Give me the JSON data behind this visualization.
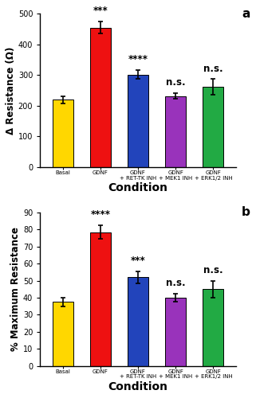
{
  "panel_a": {
    "categories": [
      "Basal",
      "GDNF",
      "GDNF + RET-TK INH",
      "GDNF + MEK1 INH",
      "GDNF + ERK1/2 INH"
    ],
    "values": [
      220,
      455,
      302,
      232,
      262
    ],
    "errors": [
      12,
      20,
      15,
      10,
      25
    ],
    "colors": [
      "#FFD700",
      "#EE1111",
      "#2244BB",
      "#9933BB",
      "#22AA44"
    ],
    "ylabel": "Δ Resistance (Ω)",
    "xlabel": "Condition",
    "ylim": [
      0,
      500
    ],
    "yticks": [
      0,
      100,
      200,
      300,
      400,
      500
    ],
    "significance": [
      "",
      "***",
      "****",
      "n.s.",
      "n.s."
    ],
    "panel_label": "a"
  },
  "panel_b": {
    "categories": [
      "Basal",
      "GDNF",
      "GDNF + RET-TK INH",
      "GDNF + MEK1 INH",
      "GDNF + ERK1/2 INH"
    ],
    "values": [
      37.5,
      78.5,
      52,
      40,
      45
    ],
    "errors": [
      2.5,
      4,
      3.5,
      2.5,
      5
    ],
    "colors": [
      "#FFD700",
      "#EE1111",
      "#2244BB",
      "#9933BB",
      "#22AA44"
    ],
    "ylabel": "% Maximum Resistance",
    "xlabel": "Condition",
    "ylim": [
      0,
      90
    ],
    "yticks": [
      0,
      10,
      20,
      30,
      40,
      50,
      60,
      70,
      80,
      90
    ],
    "significance": [
      "",
      "****",
      "***",
      "n.s.",
      "n.s."
    ],
    "panel_label": "b"
  },
  "bar_width": 0.55,
  "tick_label_fontsize": 5.0,
  "axis_label_fontsize": 8.5,
  "ytick_fontsize": 7.0,
  "sig_fontsize": 8.5,
  "panel_label_fontsize": 11,
  "xlabel_fontsize": 10,
  "background_color": "#FFFFFF"
}
